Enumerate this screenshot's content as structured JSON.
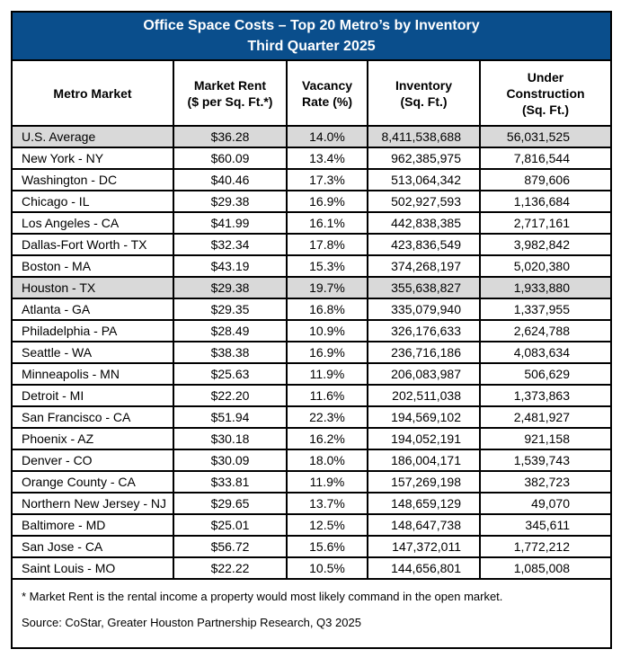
{
  "title": {
    "line1": "Office Space Costs – Top 20 Metro’s by Inventory",
    "line2": "Third Quarter 2025"
  },
  "chart_data": {
    "type": "table",
    "title": "Office Space Costs – Top 20 Metro’s by Inventory",
    "subtitle": "Third Quarter 2025",
    "columns": [
      {
        "key": "market",
        "label": "Metro Market",
        "align": "left"
      },
      {
        "key": "rent",
        "label": "Market Rent\n($ per Sq. Ft.*)",
        "align": "center"
      },
      {
        "key": "vacancy",
        "label": "Vacancy\nRate (%)",
        "align": "center"
      },
      {
        "key": "inventory",
        "label": "Inventory\n(Sq. Ft.)",
        "align": "right"
      },
      {
        "key": "construction",
        "label": "Under\nConstruction\n(Sq. Ft.)",
        "align": "right"
      }
    ],
    "rows": [
      {
        "market": "U.S. Average",
        "rent": "$36.28",
        "vacancy": "14.0%",
        "inventory": "8,411,538,688",
        "construction": "56,031,525",
        "highlight": true
      },
      {
        "market": "New York - NY",
        "rent": "$60.09",
        "vacancy": "13.4%",
        "inventory": "962,385,975",
        "construction": "7,816,544",
        "highlight": false
      },
      {
        "market": "Washington - DC",
        "rent": "$40.46",
        "vacancy": "17.3%",
        "inventory": "513,064,342",
        "construction": "879,606",
        "highlight": false
      },
      {
        "market": "Chicago - IL",
        "rent": "$29.38",
        "vacancy": "16.9%",
        "inventory": "502,927,593",
        "construction": "1,136,684",
        "highlight": false
      },
      {
        "market": "Los Angeles - CA",
        "rent": "$41.99",
        "vacancy": "16.1%",
        "inventory": "442,838,385",
        "construction": "2,717,161",
        "highlight": false
      },
      {
        "market": "Dallas-Fort Worth - TX",
        "rent": "$32.34",
        "vacancy": "17.8%",
        "inventory": "423,836,549",
        "construction": "3,982,842",
        "highlight": false
      },
      {
        "market": "Boston - MA",
        "rent": "$43.19",
        "vacancy": "15.3%",
        "inventory": "374,268,197",
        "construction": "5,020,380",
        "highlight": false
      },
      {
        "market": "Houston - TX",
        "rent": "$29.38",
        "vacancy": "19.7%",
        "inventory": "355,638,827",
        "construction": "1,933,880",
        "highlight": true
      },
      {
        "market": "Atlanta - GA",
        "rent": "$29.35",
        "vacancy": "16.8%",
        "inventory": "335,079,940",
        "construction": "1,337,955",
        "highlight": false
      },
      {
        "market": "Philadelphia - PA",
        "rent": "$28.49",
        "vacancy": "10.9%",
        "inventory": "326,176,633",
        "construction": "2,624,788",
        "highlight": false
      },
      {
        "market": "Seattle - WA",
        "rent": "$38.38",
        "vacancy": "16.9%",
        "inventory": "236,716,186",
        "construction": "4,083,634",
        "highlight": false
      },
      {
        "market": "Minneapolis - MN",
        "rent": "$25.63",
        "vacancy": "11.9%",
        "inventory": "206,083,987",
        "construction": "506,629",
        "highlight": false
      },
      {
        "market": "Detroit - MI",
        "rent": "$22.20",
        "vacancy": "11.6%",
        "inventory": "202,511,038",
        "construction": "1,373,863",
        "highlight": false
      },
      {
        "market": "San Francisco - CA",
        "rent": "$51.94",
        "vacancy": "22.3%",
        "inventory": "194,569,102",
        "construction": "2,481,927",
        "highlight": false
      },
      {
        "market": "Phoenix - AZ",
        "rent": "$30.18",
        "vacancy": "16.2%",
        "inventory": "194,052,191",
        "construction": "921,158",
        "highlight": false
      },
      {
        "market": "Denver - CO",
        "rent": "$30.09",
        "vacancy": "18.0%",
        "inventory": "186,004,171",
        "construction": "1,539,743",
        "highlight": false
      },
      {
        "market": "Orange County - CA",
        "rent": "$33.81",
        "vacancy": "11.9%",
        "inventory": "157,269,198",
        "construction": "382,723",
        "highlight": false
      },
      {
        "market": "Northern New Jersey - NJ",
        "rent": "$29.65",
        "vacancy": "13.7%",
        "inventory": "148,659,129",
        "construction": "49,070",
        "highlight": false
      },
      {
        "market": "Baltimore - MD",
        "rent": "$25.01",
        "vacancy": "12.5%",
        "inventory": "148,647,738",
        "construction": "345,611",
        "highlight": false
      },
      {
        "market": "San Jose - CA",
        "rent": "$56.72",
        "vacancy": "15.6%",
        "inventory": "147,372,011",
        "construction": "1,772,212",
        "highlight": false
      },
      {
        "market": "Saint Louis - MO",
        "rent": "$22.22",
        "vacancy": "10.5%",
        "inventory": "144,656,801",
        "construction": "1,085,008",
        "highlight": false
      }
    ],
    "layout": {
      "highlighted_rows": [
        "U.S. Average",
        "Houston - TX"
      ],
      "grid": "on"
    }
  },
  "footnotes": {
    "market_rent_note": "* Market Rent is the rental income a property would most likely command in the open market.",
    "source": "Source: CoStar, Greater Houston Partnership Research, Q3 2025"
  },
  "colors": {
    "title_background": "#0A4E8C",
    "title_text": "#FFFFFF",
    "highlight_row": "#D9D9D9",
    "border": "#000000",
    "body_text": "#000000"
  }
}
